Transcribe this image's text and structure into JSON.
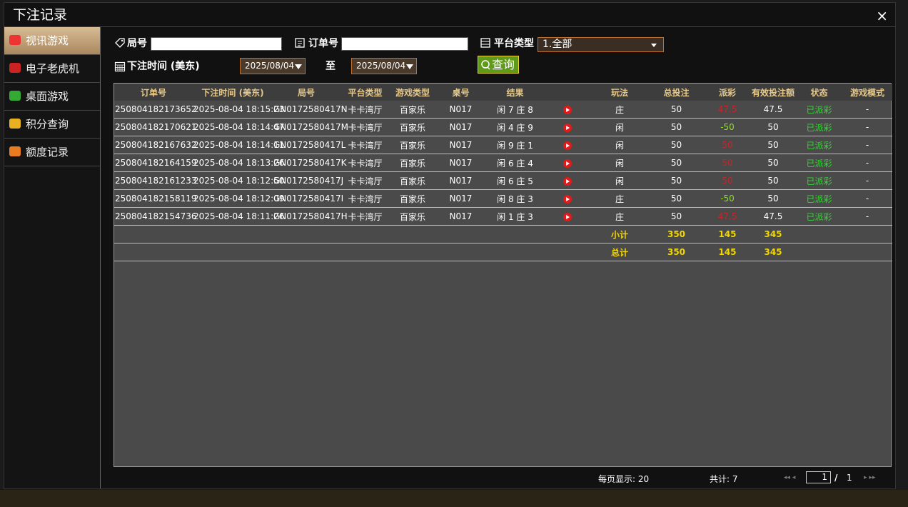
{
  "title": "下注记录",
  "close": "×",
  "sidebar": [
    "视讯游戏",
    "电子老虎机",
    "桌面游戏",
    "积分查询",
    "额度记录"
  ],
  "filters": {
    "round_label": "局号",
    "order_label": "订单号",
    "platform_label": "平台类型",
    "platform_value": "1.全部",
    "time_label": "下注时间 (美东)",
    "date_from": "2025/08/04",
    "to": "至",
    "date_to": "2025/08/04",
    "query": "查询"
  },
  "table": {
    "columns": [
      "订单号",
      "下注时间 (美东)",
      "局号",
      "平台类型",
      "游戏类型",
      "桌号",
      "结果",
      "玩法",
      "总投注",
      "派彩",
      "有效投注额",
      "状态",
      "游戏模式"
    ],
    "rows": [
      [
        "250804182173652",
        "2025-08-04 18:15:23",
        "GN0172580417N",
        "卡卡湾厅",
        "百家乐",
        "N017",
        "闲 7 庄 8",
        "庄",
        "50",
        "47.5",
        "47.5",
        "已派彩",
        "-"
      ],
      [
        "250804182170621",
        "2025-08-04 18:14:47",
        "GN0172580417M",
        "卡卡湾厅",
        "百家乐",
        "N017",
        "闲 4 庄 9",
        "闲",
        "50",
        "-50",
        "50",
        "已派彩",
        "-"
      ],
      [
        "250804182167632",
        "2025-08-04 18:14:11",
        "GN0172580417L",
        "卡卡湾厅",
        "百家乐",
        "N017",
        "闲 9 庄 1",
        "闲",
        "50",
        "50",
        "50",
        "已派彩",
        "-"
      ],
      [
        "250804182164159",
        "2025-08-04 18:13:26",
        "GN0172580417K",
        "卡卡湾厅",
        "百家乐",
        "N017",
        "闲 6 庄 4",
        "闲",
        "50",
        "50",
        "50",
        "已派彩",
        "-"
      ],
      [
        "250804182161233",
        "2025-08-04 18:12:50",
        "GN0172580417J",
        "卡卡湾厅",
        "百家乐",
        "N017",
        "闲 6 庄 5",
        "闲",
        "50",
        "50",
        "50",
        "已派彩",
        "-"
      ],
      [
        "250804182158119",
        "2025-08-04 18:12:09",
        "GN0172580417I",
        "卡卡湾厅",
        "百家乐",
        "N017",
        "闲 8 庄 3",
        "庄",
        "50",
        "-50",
        "50",
        "已派彩",
        "-"
      ],
      [
        "250804182154736",
        "2025-08-04 18:11:26",
        "GN0172580417H",
        "卡卡湾厅",
        "百家乐",
        "N017",
        "闲 1 庄 3",
        "庄",
        "50",
        "47.5",
        "47.5",
        "已派彩",
        "-"
      ]
    ],
    "summary": [
      {
        "label": "小计",
        "total_bet": "350",
        "payout": "145",
        "valid_bet": "345"
      },
      {
        "label": "总计",
        "total_bet": "350",
        "payout": "145",
        "valid_bet": "345"
      }
    ]
  },
  "footer": {
    "page_size": "每页显示: 20",
    "total": "共计: 7",
    "page": "1",
    "slash": "/",
    "pages": "1"
  }
}
